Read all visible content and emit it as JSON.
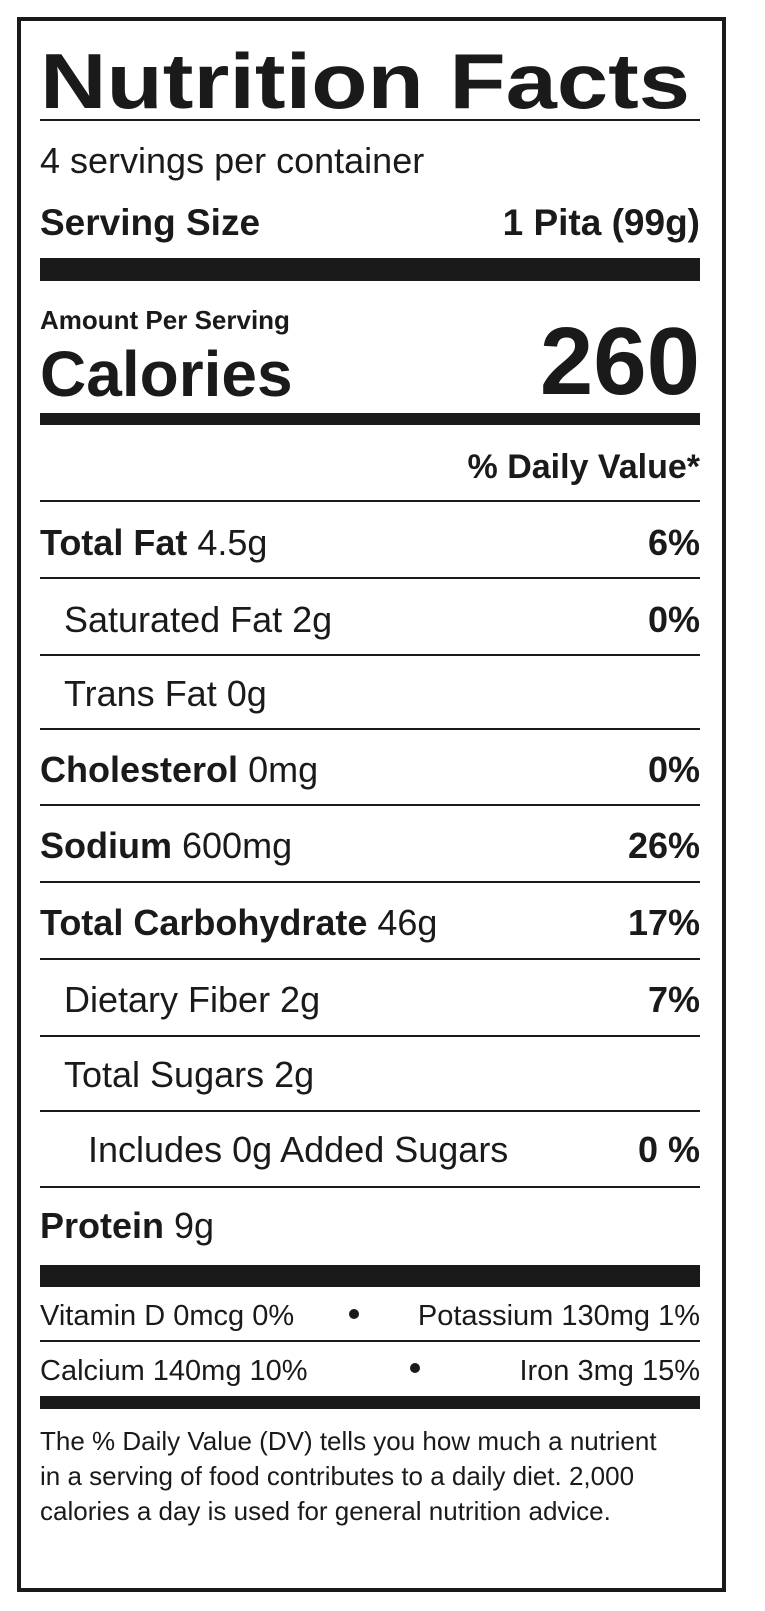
{
  "title": "Nutrition Facts",
  "servings": "4 servings per container",
  "serving_size": {
    "label": "Serving Size",
    "value": "1 Pita (99g)"
  },
  "amount_per_serving": "Amount Per Serving",
  "calories": {
    "label": "Calories",
    "value": "260"
  },
  "dv_header": "% Daily Value*",
  "nutrients": [
    {
      "name": "Total Fat",
      "amount": "4.5g",
      "dv": "6%"
    },
    {
      "name": "Saturated Fat 2g",
      "dv": "0%"
    },
    {
      "name": "Trans Fat 0g"
    },
    {
      "name": "Cholesterol",
      "amount": "0mg",
      "dv": "0%"
    },
    {
      "name": "Sodium",
      "amount": "600mg",
      "dv": "26%"
    },
    {
      "name": "Total Carbohydrate",
      "amount": "46g",
      "dv": "17%"
    },
    {
      "name": "Dietary Fiber 2g",
      "dv": "7%"
    },
    {
      "name": "Total Sugars 2g"
    },
    {
      "name": "Includes 0g Added Sugars",
      "dv": "0 %"
    },
    {
      "name": "Protein",
      "amount": "9g"
    }
  ],
  "vitamins": [
    [
      "Vitamin D 0mcg 0%",
      "Potassium 130mg 1%"
    ],
    [
      "Calcium 140mg 10%",
      "Iron 3mg 15%"
    ]
  ],
  "footnote": [
    "The % Daily Value (DV) tells you how much a nutrient",
    "in a serving of food contributes to a daily diet. 2,000",
    "calories a day is used for general nutrition advice."
  ]
}
